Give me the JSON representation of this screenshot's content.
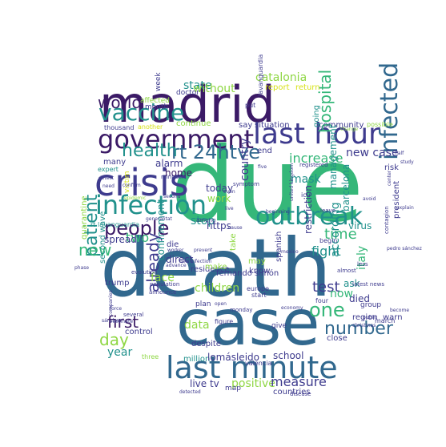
{
  "palette": {
    "dark_purple": "#3b1a66",
    "indigo": "#3e3b8e",
    "blue": "#31688e",
    "teal": "#21918c",
    "green": "#35b779",
    "lime": "#8fd744",
    "yellow": "#d8e219"
  },
  "words": [
    {
      "text": "due",
      "color": "green"
    },
    {
      "text": "death",
      "color": "blue"
    },
    {
      "text": "case",
      "color": "blue"
    },
    {
      "text": "madrid",
      "color": "dark_purple"
    },
    {
      "text": "crisis",
      "color": "indigo"
    },
    {
      "text": "last minute",
      "color": "blue"
    },
    {
      "text": "last hour",
      "color": "indigo"
    },
    {
      "text": "government",
      "color": "dark_purple"
    },
    {
      "text": "infection",
      "color": "teal"
    },
    {
      "text": "vaccine",
      "color": "teal"
    },
    {
      "text": "outbreak",
      "color": "teal"
    },
    {
      "text": "infected",
      "color": "blue"
    },
    {
      "text": "people",
      "color": "dark_purple"
    },
    {
      "text": "rt 24htve",
      "color": "blue"
    },
    {
      "text": "health",
      "color": "teal"
    },
    {
      "text": "world",
      "color": "dark_purple"
    },
    {
      "text": "number",
      "color": "blue"
    },
    {
      "text": "one",
      "color": "green"
    },
    {
      "text": "hospital",
      "color": "green"
    },
    {
      "text": "first",
      "color": "dark_purple"
    },
    {
      "text": "day",
      "color": "lime"
    },
    {
      "text": "patient",
      "color": "teal"
    },
    {
      "text": "already",
      "color": "indigo"
    },
    {
      "text": "new",
      "color": "green"
    },
    {
      "text": "catalonia",
      "color": "lime"
    },
    {
      "text": "state",
      "color": "teal"
    },
    {
      "text": "without",
      "color": "lime"
    },
    {
      "text": "report",
      "color": "yellow"
    },
    {
      "text": "return",
      "color": "yellow"
    },
    {
      "text": "week",
      "color": "indigo"
    },
    {
      "text": "doctor",
      "color": "indigo"
    },
    {
      "text": "affected",
      "color": "lime"
    },
    {
      "text": "month",
      "color": "indigo"
    },
    {
      "text": "continue",
      "color": "lime"
    },
    {
      "text": "thousand",
      "color": "indigo"
    },
    {
      "text": "another",
      "color": "yellow"
    },
    {
      "text": "say",
      "color": "indigo"
    },
    {
      "text": "situation",
      "color": "indigo"
    },
    {
      "text": "community",
      "color": "indigo"
    },
    {
      "text": "possible",
      "color": "lime"
    },
    {
      "text": "put",
      "color": "indigo"
    },
    {
      "text": "lavanguardia",
      "color": "indigo"
    },
    {
      "text": "going",
      "color": "teal"
    },
    {
      "text": "increase",
      "color": "green"
    },
    {
      "text": "new case",
      "color": "indigo"
    },
    {
      "text": "end",
      "color": "indigo"
    },
    {
      "text": "risk",
      "color": "indigo"
    },
    {
      "text": "alarm",
      "color": "indigo"
    },
    {
      "text": "home",
      "color": "dark_purple"
    },
    {
      "text": "many",
      "color": "indigo"
    },
    {
      "text": "expert",
      "color": "teal"
    },
    {
      "text": "today",
      "color": "indigo"
    },
    {
      "text": "country",
      "color": "indigo"
    },
    {
      "text": "two",
      "color": "green"
    },
    {
      "text": "stop",
      "color": "teal"
    },
    {
      "text": "work",
      "color": "lime"
    },
    {
      "text": "mask",
      "color": "teal"
    },
    {
      "text": "fight",
      "color": "teal"
    },
    {
      "text": "time",
      "color": "green"
    },
    {
      "text": "ask",
      "color": "teal"
    },
    {
      "text": "test",
      "color": "indigo"
    },
    {
      "text": "barcelona",
      "color": "teal"
    },
    {
      "text": "virus",
      "color": "teal"
    },
    {
      "text": "management",
      "color": "teal"
    },
    {
      "text": "president",
      "color": "indigo"
    },
    {
      "text": "according",
      "color": "teal"
    },
    {
      "text": "italy",
      "color": "green"
    },
    {
      "text": "now",
      "color": "green"
    },
    {
      "text": "died",
      "color": "indigo"
    },
    {
      "text": "restriction",
      "color": "indigo"
    },
    {
      "text": "https",
      "color": "indigo"
    },
    {
      "text": "icu",
      "color": "indigo"
    },
    {
      "text": "spread",
      "color": "indigo"
    },
    {
      "text": "die",
      "color": "indigo"
    },
    {
      "text": "direct",
      "color": "indigo"
    },
    {
      "text": "residence",
      "color": "indigo"
    },
    {
      "text": "fernando simón",
      "color": "indigo"
    },
    {
      "text": "take",
      "color": "lime"
    },
    {
      "text": "may",
      "color": "lime"
    },
    {
      "text": "face",
      "color": "lime"
    },
    {
      "text": "second wave",
      "color": "teal"
    },
    {
      "text": "children",
      "color": "lime"
    },
    {
      "text": "make",
      "color": "lime"
    },
    {
      "text": "confinement",
      "color": "teal"
    },
    {
      "text": "know",
      "color": "indigo"
    },
    {
      "text": "spanish",
      "color": "indigo"
    },
    {
      "text": "trump",
      "color": "indigo"
    },
    {
      "text": "data",
      "color": "lime"
    },
    {
      "text": "despite",
      "color": "indigo"
    },
    {
      "text": "year",
      "color": "teal"
    },
    {
      "text": "control",
      "color": "indigo"
    },
    {
      "text": "three",
      "color": "lime"
    },
    {
      "text": "million",
      "color": "teal"
    },
    {
      "text": "lomásleido",
      "color": "indigo"
    },
    {
      "text": "school",
      "color": "indigo"
    },
    {
      "text": "close",
      "color": "indigo"
    },
    {
      "text": "live tv",
      "color": "indigo"
    },
    {
      "text": "positive",
      "color": "lime"
    },
    {
      "text": "measure",
      "color": "indigo"
    },
    {
      "text": "countries",
      "color": "indigo"
    },
    {
      "text": "map",
      "color": "indigo"
    },
    {
      "text": "valencia",
      "color": "indigo"
    },
    {
      "text": "give",
      "color": "indigo"
    },
    {
      "text": "group",
      "color": "indigo"
    },
    {
      "text": "region",
      "color": "indigo"
    },
    {
      "text": "warn",
      "color": "indigo"
    },
    {
      "text": "march",
      "color": "indigo"
    },
    {
      "text": "quarantine",
      "color": "lime"
    },
    {
      "text": "rt lavanguardia",
      "color": "teal"
    },
    {
      "text": "victim",
      "color": "yellow"
    },
    {
      "text": "plan",
      "color": "indigo"
    },
    {
      "text": "figure",
      "color": "indigo"
    },
    {
      "text": "europe",
      "color": "indigo"
    },
    {
      "text": "start",
      "color": "indigo"
    },
    {
      "text": "four",
      "color": "indigo"
    },
    {
      "text": "almost",
      "color": "indigo"
    },
    {
      "text": "less",
      "color": "indigo"
    },
    {
      "text": "leave",
      "color": "indigo"
    },
    {
      "text": "among",
      "color": "indigo"
    },
    {
      "text": "minister",
      "color": "indigo"
    },
    {
      "text": "symptom",
      "color": "indigo"
    },
    {
      "text": "epidemic",
      "color": "lime"
    },
    {
      "text": "population",
      "color": "indigo"
    },
    {
      "text": "announce",
      "color": "indigo"
    },
    {
      "text": "evolution",
      "color": "indigo"
    },
    {
      "text": "phase",
      "color": "indigo"
    },
    {
      "text": "several",
      "color": "indigo"
    },
    {
      "text": "sánchez",
      "color": "indigo"
    },
    {
      "text": "companies",
      "color": "indigo"
    },
    {
      "text": "contagion",
      "color": "indigo"
    },
    {
      "text": "pedro sánchez",
      "color": "indigo"
    },
    {
      "text": "latest news",
      "color": "indigo"
    },
    {
      "text": "christmas",
      "color": "indigo"
    },
    {
      "text": "disease",
      "color": "indigo"
    },
    {
      "text": "detected",
      "color": "indigo"
    },
    {
      "text": "detect",
      "color": "indigo"
    },
    {
      "text": "need",
      "color": "indigo"
    },
    {
      "text": "confirm",
      "color": "indigo"
    },
    {
      "text": "beginning",
      "color": "indigo"
    },
    {
      "text": "united kingdom",
      "color": "indigo"
    },
    {
      "text": "registered",
      "color": "indigo"
    },
    {
      "text": "five",
      "color": "indigo"
    },
    {
      "text": "avoid",
      "color": "indigo"
    },
    {
      "text": "explain",
      "color": "indigo"
    },
    {
      "text": "center",
      "color": "indigo"
    },
    {
      "text": "study",
      "color": "indigo"
    },
    {
      "text": "half",
      "color": "indigo"
    },
    {
      "text": "begin",
      "color": "indigo"
    },
    {
      "text": "even",
      "color": "indigo"
    },
    {
      "text": "live",
      "color": "indigo"
    },
    {
      "text": "cause",
      "color": "indigo"
    },
    {
      "text": "prevent",
      "color": "indigo"
    },
    {
      "text": "mexico",
      "color": "indigo"
    },
    {
      "text": "monday",
      "color": "indigo"
    },
    {
      "text": "open",
      "color": "indigo"
    },
    {
      "text": "public",
      "color": "indigo"
    },
    {
      "text": "vaccinate",
      "color": "indigo"
    },
    {
      "text": "become",
      "color": "indigo"
    },
    {
      "text": "change",
      "color": "lime"
    },
    {
      "text": "advance",
      "color": "indigo"
    },
    {
      "text": "worker",
      "color": "indigo"
    },
    {
      "text": "new infection",
      "color": "indigo"
    },
    {
      "text": "force",
      "color": "indigo"
    },
    {
      "text": "economy",
      "color": "indigo"
    },
    {
      "text": "generalitat",
      "color": "indigo"
    },
    {
      "text": "second",
      "color": "indigo"
    },
    {
      "text": "united states",
      "color": "lime"
    },
    {
      "text": "drug",
      "color": "indigo"
    }
  ]
}
